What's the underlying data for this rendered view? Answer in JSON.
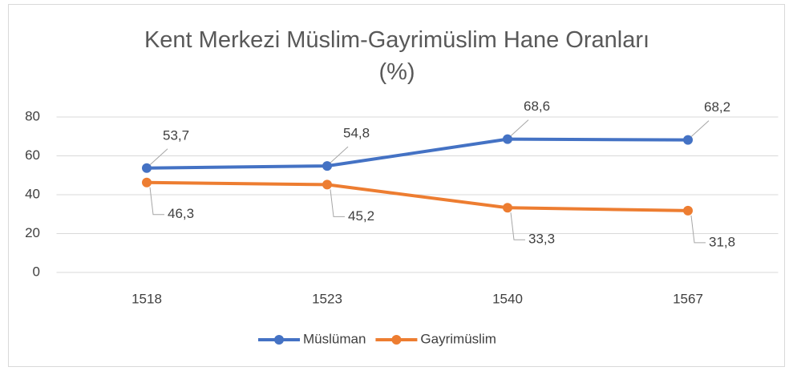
{
  "chart_data": {
    "type": "line",
    "title": "Kent Merkezi Müslim-Gayrimüslim Hane Oranları (%)",
    "categories": [
      "1518",
      "1523",
      "1540",
      "1567"
    ],
    "series": [
      {
        "name": "Müslüman",
        "color": "#4472c4",
        "values": [
          53.7,
          54.8,
          68.6,
          68.2
        ],
        "value_labels": [
          "53,7",
          "54,8",
          "68,6",
          "68,2"
        ]
      },
      {
        "name": "Gayrimüslim",
        "color": "#ed7d31",
        "values": [
          46.3,
          45.2,
          33.3,
          31.8
        ],
        "value_labels": [
          "46,3",
          "45,2",
          "33,3",
          "31,8"
        ]
      }
    ],
    "ylim": [
      0,
      80
    ],
    "yticks": [
      0,
      20,
      40,
      60,
      80
    ],
    "grid": true,
    "legend": "bottom"
  }
}
